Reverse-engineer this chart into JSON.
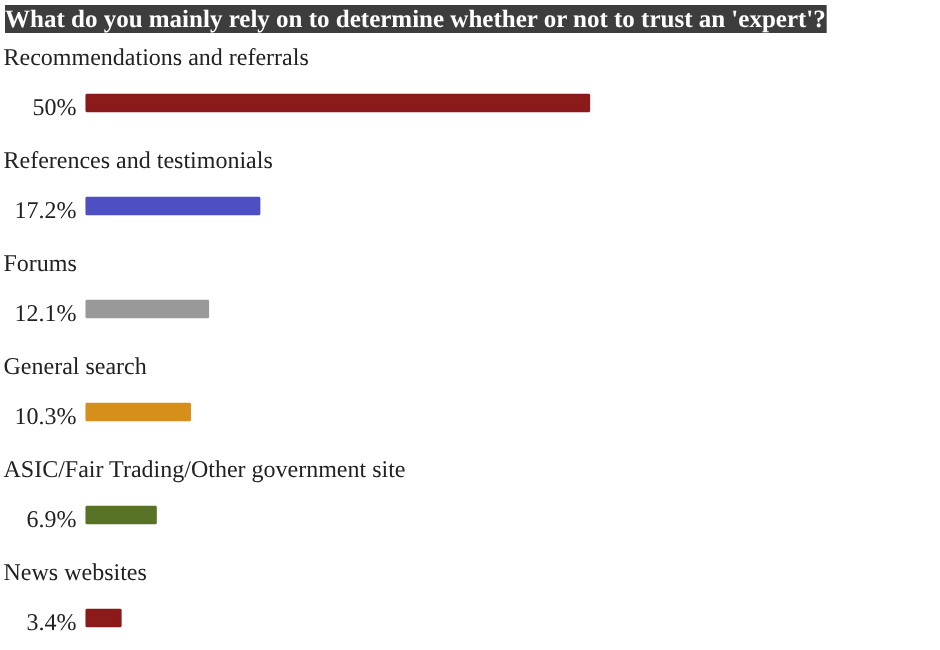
{
  "chart_data": {
    "type": "bar",
    "orientation": "horizontal",
    "title": "What do you mainly rely on to determine whether or not to trust an 'expert'?",
    "categories": [
      "Recommendations and referrals",
      "References and testimonials",
      "Forums",
      "General search",
      "ASIC/Fair Trading/Other government site",
      "News websites"
    ],
    "values": [
      50,
      17.2,
      12.1,
      10.3,
      6.9,
      3.4
    ],
    "colors": [
      "#8b1a1a",
      "#4f4fc4",
      "#999999",
      "#d68f1a",
      "#587326",
      "#8b1a1a"
    ],
    "value_labels": [
      "50%",
      "17.2%",
      "12.1%",
      "10.3%",
      "6.9%",
      "3.4%"
    ]
  }
}
